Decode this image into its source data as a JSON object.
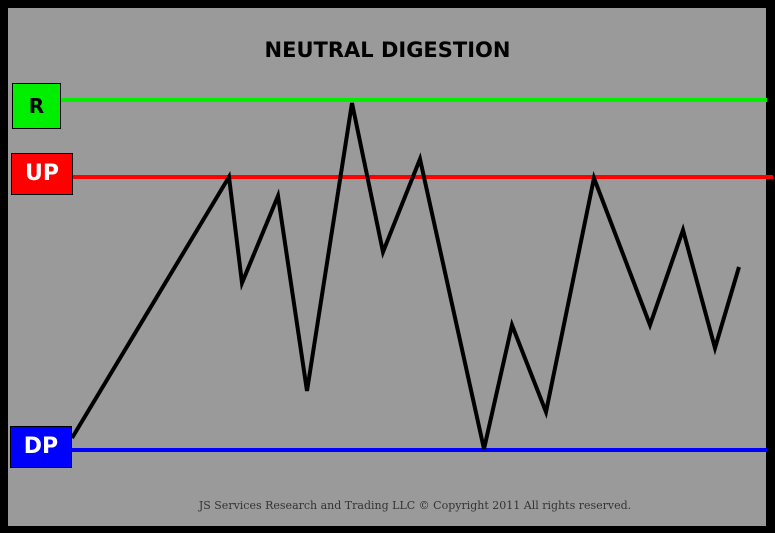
{
  "title": "NEUTRAL DIGESTION",
  "levels": {
    "resistance": {
      "label": "R",
      "color": "#00ee00",
      "text_color": "#000000"
    },
    "upper_pivot": {
      "label": "UP",
      "color": "#ff0000",
      "text_color": "#ffffff"
    },
    "down_pivot": {
      "label": "DP",
      "color": "#0000ff",
      "text_color": "#ffffff"
    }
  },
  "price_path_color": "#000000",
  "background_color": "#9a9a9a",
  "footer": "JS Services Research and Trading  LLC © Copyright 2011 All rights reserved."
}
